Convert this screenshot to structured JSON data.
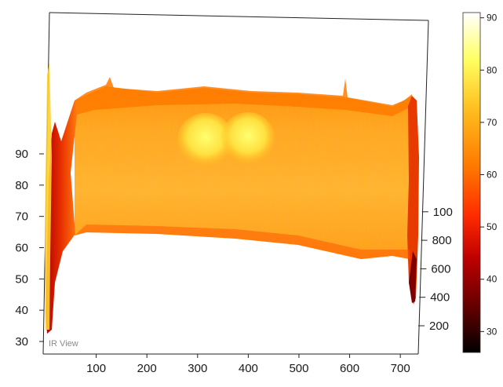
{
  "view_label": "IR View",
  "chart_data": {
    "type": "surface",
    "title": "",
    "x_ticks": [
      100,
      200,
      300,
      400,
      500,
      600,
      700
    ],
    "z_ticks": [
      30,
      40,
      50,
      60,
      70,
      80,
      90
    ],
    "y_ticks": [
      "200",
      "400",
      "600",
      "800",
      "100"
    ],
    "x_range": [
      0,
      740
    ],
    "z_range": [
      27,
      93
    ],
    "colorbar": {
      "ticks": [
        30,
        40,
        50,
        60,
        70,
        80,
        90
      ],
      "range": [
        26,
        91
      ],
      "colormap": [
        "#000000",
        "#5a0000",
        "#c00000",
        "#ff2a00",
        "#ff7a00",
        "#ffc020",
        "#ffff60",
        "#ffffff"
      ]
    },
    "description_values": {
      "front_profile_x": [
        5,
        15,
        25,
        40,
        60,
        80,
        100,
        200,
        300,
        400,
        500,
        600,
        650,
        700,
        715,
        725
      ],
      "front_profile_z": [
        32,
        38,
        45,
        52,
        59,
        63,
        64,
        65,
        64,
        62,
        60,
        58,
        57,
        60,
        48,
        42
      ],
      "hotspot_centers_x": [
        300,
        390
      ],
      "hotspot_peak_value": 76
    }
  }
}
